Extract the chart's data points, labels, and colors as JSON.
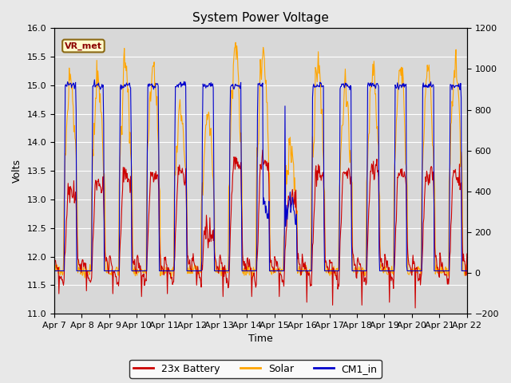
{
  "title": "System Power Voltage",
  "xlabel": "Time",
  "ylabel": "Volts",
  "ylim_left": [
    11.0,
    16.0
  ],
  "ylim_right": [
    -200,
    1200
  ],
  "yticks_left": [
    11.0,
    11.5,
    12.0,
    12.5,
    13.0,
    13.5,
    14.0,
    14.5,
    15.0,
    15.5,
    16.0
  ],
  "yticks_right": [
    -200,
    0,
    200,
    400,
    600,
    800,
    1000,
    1200
  ],
  "x_labels": [
    "Apr 7",
    "Apr 8",
    "Apr 9",
    "Apr 10",
    "Apr 11",
    "Apr 12",
    "Apr 13",
    "Apr 14",
    "Apr 15",
    "Apr 16",
    "Apr 17",
    "Apr 18",
    "Apr 19",
    "Apr 20",
    "Apr 21",
    "Apr 22"
  ],
  "line_battery_color": "#CC0000",
  "line_solar_color": "#FFA500",
  "line_cm1_color": "#0000CC",
  "fig_facecolor": "#E8E8E8",
  "plot_facecolor": "#D8D8D8",
  "title_fontsize": 11,
  "label_fontsize": 9,
  "tick_fontsize": 8,
  "legend_label_battery": "23x Battery",
  "legend_label_solar": "Solar",
  "legend_label_cm1": "CM1_in",
  "annotation_text": "VR_met",
  "n_days": 15,
  "pts_per_day": 48
}
